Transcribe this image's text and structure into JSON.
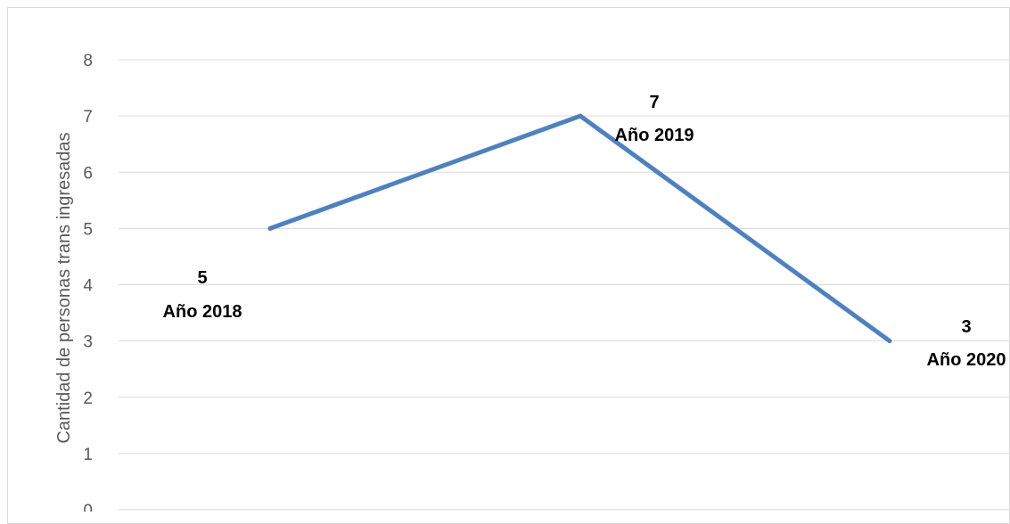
{
  "chart_data": {
    "type": "line",
    "ylabel": "Cantidad de personas trans ingresadas",
    "ylim": [
      0,
      8
    ],
    "yticks": [
      "0",
      "1",
      "2",
      "3",
      "4",
      "5",
      "6",
      "7",
      "8"
    ],
    "grid": true,
    "color": "#4f81bd",
    "series": [
      {
        "values": [
          5,
          7,
          3
        ],
        "data_labels": [
          {
            "value": "5",
            "category": "Año 2018"
          },
          {
            "value": "7",
            "category": "Año 2019"
          },
          {
            "value": "3",
            "category": "Año 2020"
          }
        ]
      }
    ]
  }
}
